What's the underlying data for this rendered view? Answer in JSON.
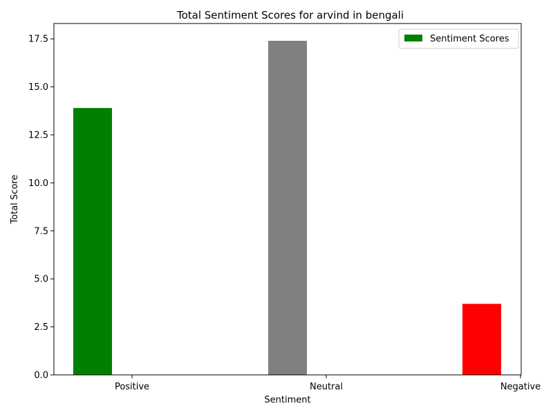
{
  "chart_data": {
    "type": "bar",
    "title": "Total Sentiment Scores for arvind in bengali",
    "xlabel": "Sentiment",
    "ylabel": "Total Score",
    "categories": [
      "Positive",
      "Neutral",
      "Negative"
    ],
    "values": [
      13.9,
      17.4,
      3.7
    ],
    "bar_colors": [
      "#008000",
      "#808080",
      "#ff0000"
    ],
    "ylim": [
      0,
      18.3
    ],
    "yticks": [
      "0.0",
      "2.5",
      "5.0",
      "7.5",
      "10.0",
      "12.5",
      "15.0",
      "17.5"
    ],
    "grid": false,
    "legend": {
      "position": "top-right",
      "entries": [
        {
          "label": "Sentiment Scores",
          "color": "#008000"
        }
      ]
    }
  }
}
